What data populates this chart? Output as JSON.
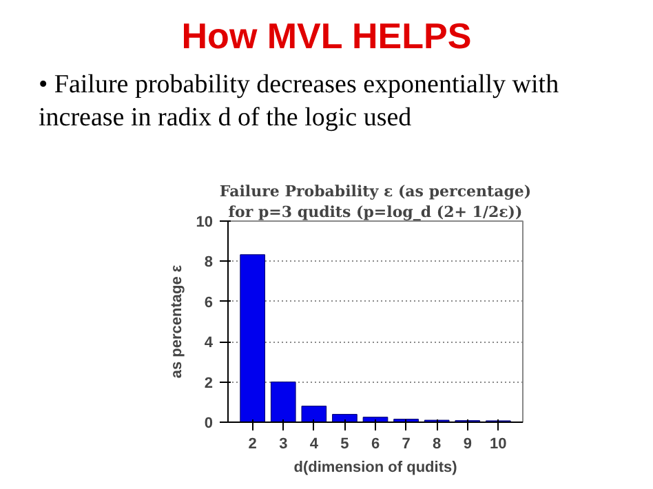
{
  "chart_data": {
    "type": "bar",
    "title": "Failure Probability ε (as percentage)",
    "subtitle": "for p=3 qudits (p=log_d (2+ 1/2ε))",
    "annotations": [
      "How MVL HELPS",
      "• Failure probability decreases exponentially with increase  in radix d of the logic used"
    ],
    "xlabel": "d(dimension of qudits)",
    "ylabel": "as percentage ε",
    "categories": [
      "2",
      "3",
      "4",
      "5",
      "6",
      "7",
      "8",
      "9",
      "10"
    ],
    "values": [
      8.33,
      2.0,
      0.8,
      0.39,
      0.25,
      0.15,
      0.1,
      0.08,
      0.07
    ],
    "color": "#0000ee",
    "ylim": [
      0,
      10
    ],
    "yticks": [
      0,
      2,
      4,
      6,
      8,
      10
    ],
    "grid": "y"
  }
}
